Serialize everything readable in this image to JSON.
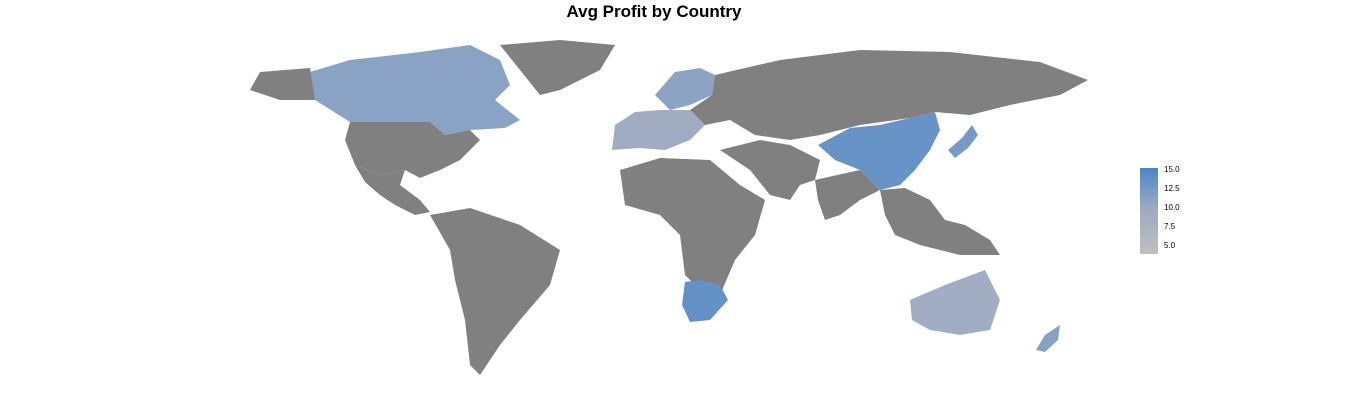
{
  "title": "Avg Profit by Country",
  "colors": {
    "no_data": "#808080",
    "low": "#bfbfbf",
    "mid": "#9aa9c2",
    "high": "#4a86c8"
  },
  "legend": {
    "ticks": [
      "15.0",
      "12.5",
      "10.0",
      "7.5",
      "5.0"
    ],
    "min": 4.0,
    "max": 15.0
  },
  "map_data": {
    "type": "choropleth",
    "metric": "Avg Profit",
    "regions": [
      {
        "name": "Canada",
        "value": 10.6
      },
      {
        "name": "United States",
        "value": null
      },
      {
        "name": "Mexico",
        "value": null
      },
      {
        "name": "Greenland",
        "value": null
      },
      {
        "name": "South America",
        "value": null
      },
      {
        "name": "Scandinavia",
        "value": 10.4
      },
      {
        "name": "Western Europe",
        "value": 8.8
      },
      {
        "name": "Russia",
        "value": null
      },
      {
        "name": "Africa",
        "value": null
      },
      {
        "name": "South Africa",
        "value": 13.2
      },
      {
        "name": "Middle East",
        "value": null
      },
      {
        "name": "India",
        "value": null
      },
      {
        "name": "China",
        "value": 13.0
      },
      {
        "name": "Japan",
        "value": 12.0
      },
      {
        "name": "Southeast Asia",
        "value": null
      },
      {
        "name": "Australia",
        "value": 8.6
      },
      {
        "name": "New Zealand",
        "value": 10.8
      }
    ]
  }
}
